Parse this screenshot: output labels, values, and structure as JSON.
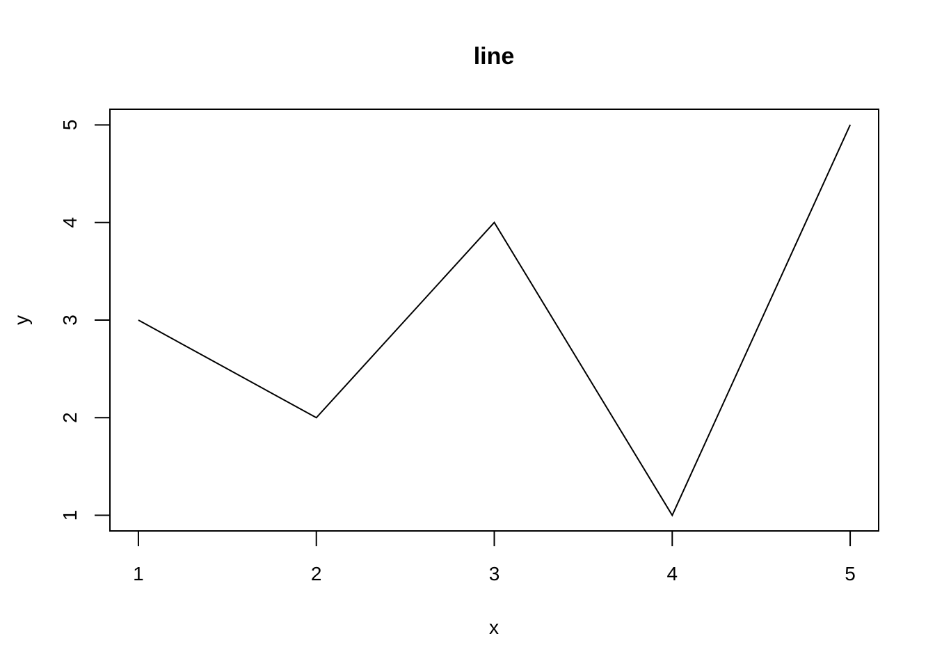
{
  "chart_data": {
    "type": "line",
    "title": "line",
    "xlabel": "x",
    "ylabel": "y",
    "x": [
      1,
      2,
      3,
      4,
      5
    ],
    "series": [
      {
        "name": "y",
        "values": [
          3,
          2,
          4,
          1,
          5
        ]
      }
    ],
    "xticks": [
      1,
      2,
      3,
      4,
      5
    ],
    "yticks": [
      1,
      2,
      3,
      4,
      5
    ],
    "xlim": [
      0.84,
      5.16
    ],
    "ylim": [
      0.84,
      5.16
    ],
    "grid": false,
    "line_color": "#000000"
  }
}
